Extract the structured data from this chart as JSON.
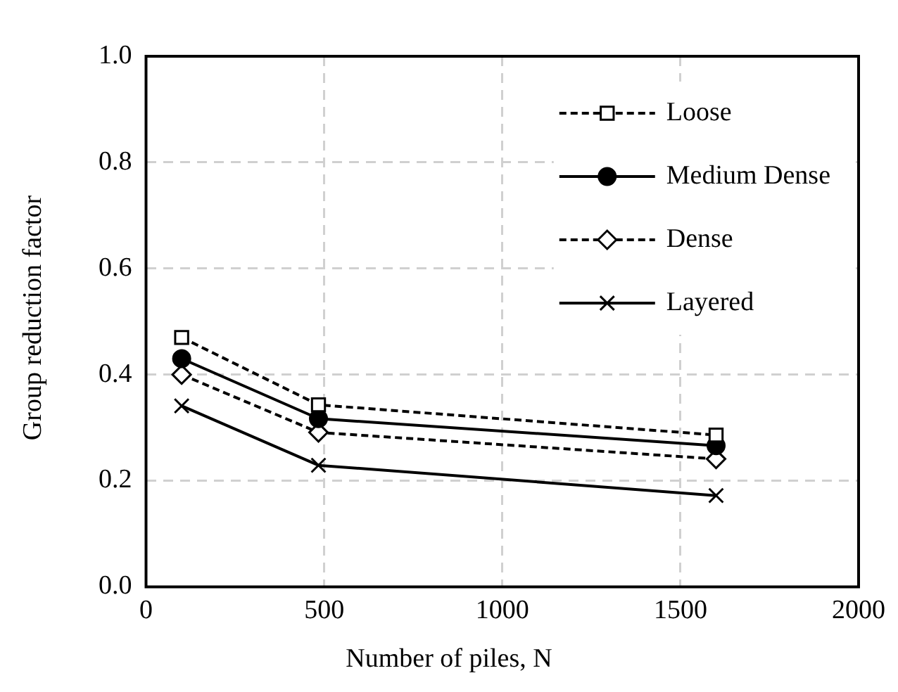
{
  "chart_data": {
    "type": "line",
    "xlabel": "Number of piles, N",
    "ylabel": "Group reduction factor",
    "x": [
      100,
      484,
      1600
    ],
    "series": [
      {
        "name": "Loose",
        "color": "#000000",
        "values": [
          0.47,
          0.343,
          0.286
        ],
        "marker": "square",
        "line_style": "dashed"
      },
      {
        "name": "Medium Dense",
        "color": "#000000",
        "values": [
          0.43,
          0.317,
          0.266
        ],
        "marker": "circle",
        "line_style": "solid"
      },
      {
        "name": "Dense",
        "color": "#000000",
        "values": [
          0.4,
          0.291,
          0.241
        ],
        "marker": "diamond",
        "line_style": "dashed"
      },
      {
        "name": "Layered",
        "color": "#000000",
        "values": [
          0.341,
          0.229,
          0.172
        ],
        "marker": "cross",
        "line_style": "solid"
      }
    ],
    "xlim": [
      0,
      2000
    ],
    "xticks": [
      0,
      500,
      1000,
      1500,
      2000
    ],
    "ylim": [
      0,
      1
    ],
    "yticks": [
      {
        "value": 0,
        "label": "0.0"
      },
      {
        "value": 0.2,
        "label": "0.2"
      },
      {
        "value": 0.4,
        "label": "0.4"
      },
      {
        "value": 0.6,
        "label": "0.6"
      },
      {
        "value": 0.8,
        "label": "0.8"
      },
      {
        "value": 1,
        "label": "1.0"
      }
    ],
    "grid": true,
    "legend": "top right"
  }
}
